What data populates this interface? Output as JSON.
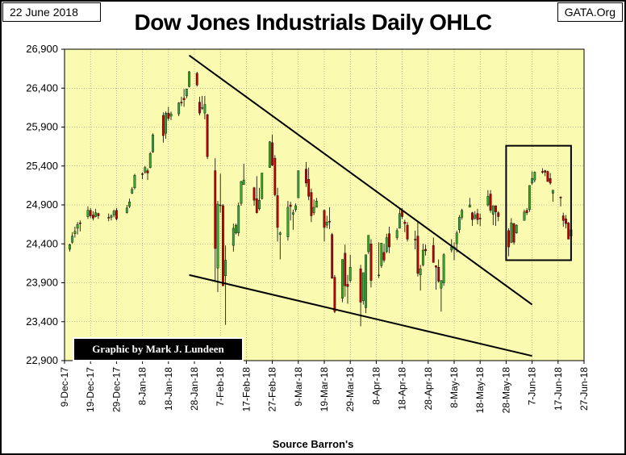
{
  "header": {
    "date_label": "22 June 2018",
    "source_label": "GATA.Org"
  },
  "credit": "Graphic by Mark J. Lundeen",
  "colors": {
    "plot_background": "#fafab0",
    "up_candle": "#33aa33",
    "down_candle": "#c00000",
    "grid": "#888888",
    "trendline": "#000000"
  },
  "chart_data": {
    "type": "candlestick",
    "title": "Dow Jones Industrials Daily OHLC",
    "xlabel": "Source Barron's",
    "ylabel": "",
    "ylim": [
      22900,
      26900
    ],
    "yticks": [
      22900,
      23400,
      23900,
      24400,
      24900,
      25400,
      25900,
      26400,
      26900
    ],
    "ytick_labels": [
      "22,900",
      "23,400",
      "23,900",
      "24,400",
      "24,900",
      "25,400",
      "25,900",
      "26,400",
      "26,900"
    ],
    "xlim": [
      "2017-12-09",
      "2018-06-27"
    ],
    "xticks": [
      "2017-12-09",
      "2017-12-19",
      "2017-12-29",
      "2018-01-08",
      "2018-01-18",
      "2018-01-28",
      "2018-02-07",
      "2018-02-17",
      "2018-02-27",
      "2018-03-09",
      "2018-03-19",
      "2018-03-29",
      "2018-04-08",
      "2018-04-18",
      "2018-04-28",
      "2018-05-08",
      "2018-05-18",
      "2018-05-28",
      "2018-06-07",
      "2018-06-17",
      "2018-06-27"
    ],
    "xtick_labels": [
      "9-Dec-17",
      "19-Dec-17",
      "29-Dec-17",
      "8-Jan-18",
      "18-Jan-18",
      "28-Jan-18",
      "7-Feb-18",
      "17-Feb-18",
      "27-Feb-18",
      "9-Mar-18",
      "19-Mar-18",
      "29-Mar-18",
      "8-Apr-18",
      "18-Apr-18",
      "28-Apr-18",
      "8-May-18",
      "18-May-18",
      "28-May-18",
      "7-Jun-18",
      "17-Jun-18",
      "27-Jun-18"
    ],
    "grid": true,
    "ohlc_columns": [
      "date",
      "open",
      "high",
      "low",
      "close"
    ],
    "series": [
      [
        "2017-12-11",
        24330,
        24400,
        24300,
        24390
      ],
      [
        "2017-12-12",
        24420,
        24550,
        24400,
        24500
      ],
      [
        "2017-12-13",
        24530,
        24620,
        24480,
        24560
      ],
      [
        "2017-12-14",
        24600,
        24680,
        24520,
        24650
      ],
      [
        "2017-12-15",
        24670,
        24700,
        24560,
        24660
      ],
      [
        "2017-12-18",
        24750,
        24880,
        24720,
        24830
      ],
      [
        "2017-12-19",
        24830,
        24860,
        24730,
        24760
      ],
      [
        "2017-12-20",
        24770,
        24820,
        24700,
        24730
      ],
      [
        "2017-12-21",
        24750,
        24850,
        24740,
        24800
      ],
      [
        "2017-12-22",
        24790,
        24800,
        24720,
        24760
      ],
      [
        "2017-12-26",
        24740,
        24790,
        24690,
        24730
      ],
      [
        "2017-12-27",
        24740,
        24780,
        24700,
        24760
      ],
      [
        "2017-12-28",
        24770,
        24840,
        24740,
        24820
      ],
      [
        "2017-12-29",
        24830,
        24860,
        24700,
        24720
      ],
      [
        "2018-01-02",
        24800,
        24900,
        24790,
        24860
      ],
      [
        "2018-01-03",
        24880,
        24980,
        24860,
        24940
      ],
      [
        "2018-01-04",
        25050,
        25130,
        25040,
        25100
      ],
      [
        "2018-01-05",
        25120,
        25300,
        25100,
        25280
      ],
      [
        "2018-01-08",
        25300,
        25320,
        25230,
        25290
      ],
      [
        "2018-01-09",
        25320,
        25400,
        25300,
        25380
      ],
      [
        "2018-01-10",
        25340,
        25370,
        25220,
        25310
      ],
      [
        "2018-01-11",
        25380,
        25580,
        25370,
        25560
      ],
      [
        "2018-01-12",
        25580,
        25820,
        25570,
        25800
      ],
      [
        "2018-01-16",
        26050,
        26090,
        25700,
        25790
      ],
      [
        "2018-01-17",
        25820,
        26100,
        25750,
        26080
      ],
      [
        "2018-01-18",
        26080,
        26160,
        25980,
        26010
      ],
      [
        "2018-01-19",
        26040,
        26100,
        25990,
        26070
      ],
      [
        "2018-01-22",
        26070,
        26220,
        26040,
        26210
      ],
      [
        "2018-01-23",
        26220,
        26290,
        26170,
        26210
      ],
      [
        "2018-01-24",
        26270,
        26390,
        26160,
        26250
      ],
      [
        "2018-01-25",
        26300,
        26390,
        26270,
        26390
      ],
      [
        "2018-01-26",
        26420,
        26620,
        26410,
        26610
      ],
      [
        "2018-01-29",
        26590,
        26610,
        26420,
        26440
      ],
      [
        "2018-01-30",
        26220,
        26290,
        26050,
        26080
      ],
      [
        "2018-01-31",
        26150,
        26300,
        26120,
        26150
      ],
      [
        "2018-02-01",
        26080,
        26300,
        26000,
        26190
      ],
      [
        "2018-02-02",
        26060,
        26070,
        25490,
        25520
      ],
      [
        "2018-02-05",
        25340,
        25500,
        23920,
        24340
      ],
      [
        "2018-02-06",
        24090,
        24950,
        23780,
        24910
      ],
      [
        "2018-02-07",
        24900,
        25300,
        24800,
        24890
      ],
      [
        "2018-02-08",
        24890,
        24910,
        23860,
        23860
      ],
      [
        "2018-02-09",
        23990,
        24380,
        23360,
        24190
      ],
      [
        "2018-02-12",
        24380,
        24660,
        24300,
        24600
      ],
      [
        "2018-02-13",
        24540,
        24660,
        24520,
        24640
      ],
      [
        "2018-02-14",
        24540,
        24930,
        24500,
        24890
      ],
      [
        "2018-02-15",
        24920,
        25210,
        24890,
        25200
      ],
      [
        "2018-02-16",
        25160,
        25430,
        25160,
        25220
      ],
      [
        "2018-02-20",
        25120,
        25130,
        24890,
        24960
      ],
      [
        "2018-02-21",
        24980,
        25270,
        24790,
        24800
      ],
      [
        "2018-02-22",
        24850,
        25120,
        24830,
        24960
      ],
      [
        "2018-02-23",
        24980,
        25310,
        24970,
        25310
      ],
      [
        "2018-02-26",
        25380,
        25720,
        25380,
        25710
      ],
      [
        "2018-02-27",
        25700,
        25800,
        25400,
        25410
      ],
      [
        "2018-02-28",
        25500,
        25540,
        25010,
        25030
      ],
      [
        "2018-03-01",
        25020,
        25120,
        24430,
        24610
      ],
      [
        "2018-03-02",
        24520,
        24560,
        24200,
        24540
      ],
      [
        "2018-03-05",
        24490,
        24950,
        24440,
        24870
      ],
      [
        "2018-03-06",
        24900,
        24940,
        24700,
        24880
      ],
      [
        "2018-03-07",
        24780,
        24840,
        24580,
        24800
      ],
      [
        "2018-03-08",
        24840,
        24920,
        24810,
        24890
      ],
      [
        "2018-03-09",
        24990,
        25340,
        24990,
        25340
      ],
      [
        "2018-03-12",
        25360,
        25450,
        25130,
        25180
      ],
      [
        "2018-03-13",
        25230,
        25380,
        24960,
        25010
      ],
      [
        "2018-03-14",
        25060,
        25110,
        24680,
        24760
      ],
      [
        "2018-03-15",
        24800,
        24970,
        24770,
        24870
      ],
      [
        "2018-03-16",
        24870,
        24990,
        24870,
        24950
      ],
      [
        "2018-03-19",
        24830,
        24840,
        24430,
        24610
      ],
      [
        "2018-03-20",
        24640,
        24760,
        24600,
        24680
      ],
      [
        "2018-03-21",
        24690,
        24870,
        24590,
        24680
      ],
      [
        "2018-03-22",
        24520,
        24540,
        23950,
        23960
      ],
      [
        "2018-03-23",
        23970,
        24000,
        23510,
        23530
      ],
      [
        "2018-03-26",
        23700,
        24200,
        23650,
        24200
      ],
      [
        "2018-03-27",
        24280,
        24390,
        23720,
        23860
      ],
      [
        "2018-03-28",
        23880,
        24000,
        23630,
        23850
      ],
      [
        "2018-03-29",
        23930,
        24260,
        23900,
        24100
      ],
      [
        "2018-04-02",
        24080,
        24130,
        23340,
        23650
      ],
      [
        "2018-04-03",
        23670,
        24010,
        23620,
        24030
      ],
      [
        "2018-04-04",
        23580,
        24170,
        23510,
        24260
      ],
      [
        "2018-04-05",
        24300,
        24510,
        24270,
        24510
      ],
      [
        "2018-04-06",
        24400,
        24460,
        23840,
        23930
      ],
      [
        "2018-04-09",
        23990,
        24420,
        23960,
        24000
      ],
      [
        "2018-04-10",
        24120,
        24410,
        24090,
        24410
      ],
      [
        "2018-04-11",
        24290,
        24400,
        24160,
        24190
      ],
      [
        "2018-04-12",
        24300,
        24530,
        24280,
        24480
      ],
      [
        "2018-04-13",
        24530,
        24620,
        24280,
        24360
      ],
      [
        "2018-04-16",
        24480,
        24600,
        24450,
        24570
      ],
      [
        "2018-04-17",
        24600,
        24860,
        24600,
        24790
      ],
      [
        "2018-04-18",
        24830,
        24860,
        24720,
        24750
      ],
      [
        "2018-04-19",
        24680,
        24710,
        24550,
        24660
      ],
      [
        "2018-04-20",
        24640,
        24680,
        24430,
        24460
      ],
      [
        "2018-04-23",
        24460,
        24570,
        24330,
        24450
      ],
      [
        "2018-04-24",
        24500,
        24680,
        23980,
        24020
      ],
      [
        "2018-04-25",
        24000,
        24130,
        23800,
        24080
      ],
      [
        "2018-04-26",
        24130,
        24400,
        24110,
        24320
      ],
      [
        "2018-04-27",
        24330,
        24390,
        24250,
        24310
      ],
      [
        "2018-04-30",
        24380,
        24480,
        24160,
        24160
      ],
      [
        "2018-05-01",
        24120,
        24120,
        23810,
        24100
      ],
      [
        "2018-05-02",
        24100,
        24200,
        23900,
        23920
      ],
      [
        "2018-05-03",
        23830,
        23900,
        23530,
        23930
      ],
      [
        "2018-05-04",
        23900,
        24280,
        23860,
        24260
      ],
      [
        "2018-05-07",
        24320,
        24460,
        24290,
        24360
      ],
      [
        "2018-05-08",
        24340,
        24420,
        24190,
        24360
      ],
      [
        "2018-05-09",
        24400,
        24570,
        24290,
        24540
      ],
      [
        "2018-05-10",
        24580,
        24770,
        24540,
        24740
      ],
      [
        "2018-05-11",
        24740,
        24850,
        24710,
        24830
      ],
      [
        "2018-05-14",
        24870,
        24990,
        24870,
        24900
      ],
      [
        "2018-05-15",
        24800,
        24810,
        24630,
        24710
      ],
      [
        "2018-05-16",
        24730,
        24820,
        24710,
        24770
      ],
      [
        "2018-05-17",
        24790,
        24850,
        24650,
        24710
      ],
      [
        "2018-05-18",
        24730,
        24790,
        24630,
        24720
      ],
      [
        "2018-05-21",
        24900,
        25090,
        24880,
        25010
      ],
      [
        "2018-05-22",
        25040,
        25090,
        24800,
        24830
      ],
      [
        "2018-05-23",
        24780,
        24890,
        24640,
        24890
      ],
      [
        "2018-05-24",
        24890,
        24890,
        24630,
        24810
      ],
      [
        "2018-05-25",
        24800,
        24820,
        24690,
        24750
      ],
      [
        "2018-05-29",
        24570,
        24600,
        24240,
        24360
      ],
      [
        "2018-05-30",
        24420,
        24730,
        24410,
        24670
      ],
      [
        "2018-05-31",
        24660,
        24670,
        24390,
        24420
      ],
      [
        "2018-06-01",
        24540,
        24650,
        24530,
        24640
      ],
      [
        "2018-06-04",
        24700,
        24840,
        24700,
        24810
      ],
      [
        "2018-06-05",
        24830,
        24860,
        24770,
        24800
      ],
      [
        "2018-06-06",
        24840,
        25150,
        24810,
        25150
      ],
      [
        "2018-06-07",
        25180,
        25330,
        25160,
        25240
      ],
      [
        "2018-06-08",
        25220,
        25330,
        25190,
        25320
      ],
      [
        "2018-06-11",
        25330,
        25370,
        25300,
        25320
      ],
      [
        "2018-06-12",
        25340,
        25350,
        25270,
        25320
      ],
      [
        "2018-06-13",
        25330,
        25340,
        25200,
        25200
      ],
      [
        "2018-06-14",
        25240,
        25310,
        25160,
        25180
      ],
      [
        "2018-06-15",
        25050,
        25090,
        24940,
        25090
      ],
      [
        "2018-06-18",
        25000,
        25010,
        24880,
        24990
      ],
      [
        "2018-06-19",
        24760,
        24800,
        24620,
        24700
      ],
      [
        "2018-06-20",
        24720,
        24770,
        24600,
        24660
      ],
      [
        "2018-06-21",
        24670,
        24680,
        24460,
        24460
      ],
      [
        "2018-06-22",
        24500,
        24630,
        24460,
        24580
      ]
    ],
    "annotations": {
      "upper_trendline": {
        "from": [
          "2018-01-26",
          26820
        ],
        "to": [
          "2018-06-07",
          23620
        ]
      },
      "lower_trendline": {
        "from": [
          "2018-01-26",
          24000
        ],
        "to": [
          "2018-06-07",
          22960
        ]
      },
      "highlight_box": {
        "from": [
          "2018-05-28",
          24190
        ],
        "to": [
          "2018-06-22",
          25660
        ]
      }
    }
  }
}
